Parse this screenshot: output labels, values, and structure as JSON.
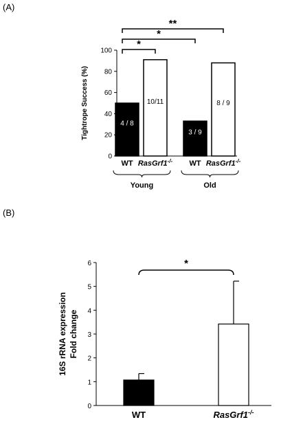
{
  "chart_data": [
    {
      "type": "bar",
      "panel_label": "(A)",
      "ylabel": "Tightrope  Success (%)",
      "ylim": [
        0,
        100
      ],
      "yticks": [
        "0",
        "20",
        "40",
        "60",
        "80",
        "100"
      ],
      "categories": [
        "WT",
        "RasGrf1",
        "WT",
        "RasGrf1"
      ],
      "category_superscript": [
        "",
        "-/-",
        "",
        "-/-"
      ],
      "groups": [
        {
          "name": "Young",
          "members": [
            0,
            1
          ]
        },
        {
          "name": "Old",
          "members": [
            2,
            3
          ]
        }
      ],
      "values": [
        50,
        91,
        33,
        88
      ],
      "bar_labels": [
        "4 / 8",
        "10/11",
        "3 / 9",
        "8 / 9"
      ],
      "bar_fill": [
        "#000000",
        "#ffffff",
        "#000000",
        "#ffffff"
      ],
      "significance": [
        {
          "from": 0,
          "to": 1,
          "label": "*"
        },
        {
          "from": 0,
          "to": 2,
          "label": "*"
        },
        {
          "from": 0,
          "to": 3,
          "label": "**"
        }
      ]
    },
    {
      "type": "bar",
      "panel_label": "(B)",
      "ylabel_lines": [
        "16S rRNA  expression",
        "Fold change"
      ],
      "ylim": [
        0,
        6
      ],
      "yticks": [
        "0",
        "1",
        "2",
        "3",
        "4",
        "5",
        "6"
      ],
      "categories": [
        "WT",
        "RasGrf1"
      ],
      "category_superscript": [
        "",
        "-/-"
      ],
      "values": [
        1.07,
        3.42
      ],
      "errors": [
        0.27,
        1.8
      ],
      "bar_fill": [
        "#000000",
        "#ffffff"
      ],
      "significance": [
        {
          "from": 0,
          "to": 1,
          "label": "*"
        }
      ]
    }
  ]
}
